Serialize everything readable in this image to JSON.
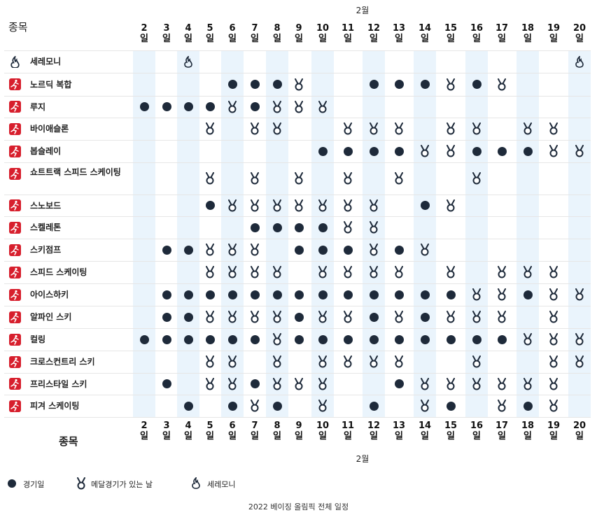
{
  "header": {
    "month": "2월",
    "sport_col": "종목",
    "day_suffix": "일"
  },
  "days": [
    "2",
    "3",
    "4",
    "5",
    "6",
    "7",
    "8",
    "9",
    "10",
    "11",
    "12",
    "13",
    "14",
    "15",
    "16",
    "17",
    "18",
    "19",
    "20"
  ],
  "sports": [
    {
      "name": "세레모니",
      "icon": "ceremony-icon",
      "cells": [
        "",
        "",
        "C",
        "",
        "",
        "",
        "",
        "",
        "",
        "",
        "",
        "",
        "",
        "",
        "",
        "",
        "",
        "",
        "C"
      ]
    },
    {
      "name": "노르딕 복합",
      "icon": "nordic-combined-icon",
      "cells": [
        "",
        "",
        "",
        "",
        "E",
        "E",
        "E",
        "M",
        "",
        "",
        "E",
        "E",
        "E",
        "M",
        "E",
        "M",
        "",
        "",
        ""
      ]
    },
    {
      "name": "루지",
      "icon": "luge-icon",
      "cells": [
        "E",
        "E",
        "E",
        "E",
        "M",
        "E",
        "M",
        "M",
        "M",
        "",
        "",
        "",
        "",
        "",
        "",
        "",
        "",
        "",
        ""
      ]
    },
    {
      "name": "바이애슬론",
      "icon": "biathlon-icon",
      "cells": [
        "",
        "",
        "",
        "M",
        "",
        "M",
        "M",
        "",
        "",
        "M",
        "M",
        "M",
        "",
        "M",
        "M",
        "",
        "M",
        "M",
        ""
      ]
    },
    {
      "name": "봅슬레이",
      "icon": "bobsleigh-icon",
      "cells": [
        "",
        "",
        "",
        "",
        "",
        "",
        "",
        "",
        "E",
        "E",
        "E",
        "E",
        "M",
        "M",
        "E",
        "E",
        "E",
        "M",
        "M"
      ]
    },
    {
      "name": "쇼트트랙 스피드 스케이팅",
      "icon": "short-track-icon",
      "cells": [
        "",
        "",
        "",
        "M",
        "",
        "M",
        "",
        "M",
        "",
        "M",
        "",
        "M",
        "",
        "",
        "M",
        "",
        "",
        "",
        ""
      ]
    },
    {
      "name": "스노보드",
      "icon": "snowboard-icon",
      "cells": [
        "",
        "",
        "",
        "E",
        "M",
        "M",
        "M",
        "M",
        "M",
        "M",
        "M",
        "",
        "E",
        "M",
        "",
        "",
        "",
        "",
        ""
      ]
    },
    {
      "name": "스켈레톤",
      "icon": "skeleton-icon",
      "cells": [
        "",
        "",
        "",
        "",
        "",
        "E",
        "E",
        "E",
        "E",
        "M",
        "M",
        "",
        "",
        "",
        "",
        "",
        "",
        "",
        ""
      ]
    },
    {
      "name": "스키점프",
      "icon": "ski-jumping-icon",
      "cells": [
        "",
        "E",
        "E",
        "M",
        "M",
        "M",
        "",
        "E",
        "E",
        "E",
        "M",
        "E",
        "M",
        "",
        "",
        "",
        "",
        "",
        ""
      ]
    },
    {
      "name": "스피드 스케이팅",
      "icon": "speed-skating-icon",
      "cells": [
        "",
        "",
        "",
        "M",
        "M",
        "M",
        "M",
        "",
        "M",
        "M",
        "M",
        "M",
        "",
        "M",
        "",
        "M",
        "M",
        "M",
        ""
      ]
    },
    {
      "name": "아이스하키",
      "icon": "ice-hockey-icon",
      "cells": [
        "",
        "E",
        "E",
        "E",
        "E",
        "E",
        "E",
        "E",
        "E",
        "E",
        "E",
        "E",
        "E",
        "E",
        "M",
        "M",
        "E",
        "M",
        "M"
      ]
    },
    {
      "name": "알파인 스키",
      "icon": "alpine-skiing-icon",
      "cells": [
        "",
        "E",
        "E",
        "M",
        "M",
        "M",
        "M",
        "E",
        "M",
        "M",
        "E",
        "M",
        "E",
        "M",
        "M",
        "M",
        "",
        "M",
        ""
      ]
    },
    {
      "name": "컬링",
      "icon": "curling-icon",
      "cells": [
        "E",
        "E",
        "E",
        "E",
        "E",
        "E",
        "M",
        "E",
        "E",
        "E",
        "E",
        "E",
        "E",
        "E",
        "E",
        "E",
        "M",
        "M",
        "M"
      ]
    },
    {
      "name": "크로스컨트리 스키",
      "icon": "cross-country-icon",
      "cells": [
        "",
        "",
        "",
        "M",
        "M",
        "",
        "M",
        "",
        "M",
        "M",
        "M",
        "M",
        "",
        "",
        "M",
        "",
        "",
        "M",
        "M"
      ]
    },
    {
      "name": "프리스타일 스키",
      "icon": "freestyle-skiing-icon",
      "cells": [
        "",
        "E",
        "",
        "M",
        "M",
        "E",
        "M",
        "M",
        "M",
        "",
        "",
        "E",
        "M",
        "M",
        "M",
        "M",
        "M",
        "M",
        ""
      ]
    },
    {
      "name": "피겨 스케이팅",
      "icon": "figure-skating-icon",
      "cells": [
        "",
        "",
        "E",
        "",
        "E",
        "M",
        "E",
        "",
        "M",
        "",
        "E",
        "",
        "M",
        "E",
        "",
        "M",
        "E",
        "M",
        ""
      ]
    }
  ],
  "legend": {
    "event_day": "경기일",
    "medal_day": "메달경기가 있는 날",
    "ceremony": "세레모니"
  },
  "caption": "2022 베이징 올림픽 전체 일정",
  "colors": {
    "column_highlight": "#eaf4fc",
    "dot": "#1e2a3a",
    "sport_icon": "#d71f2d"
  }
}
